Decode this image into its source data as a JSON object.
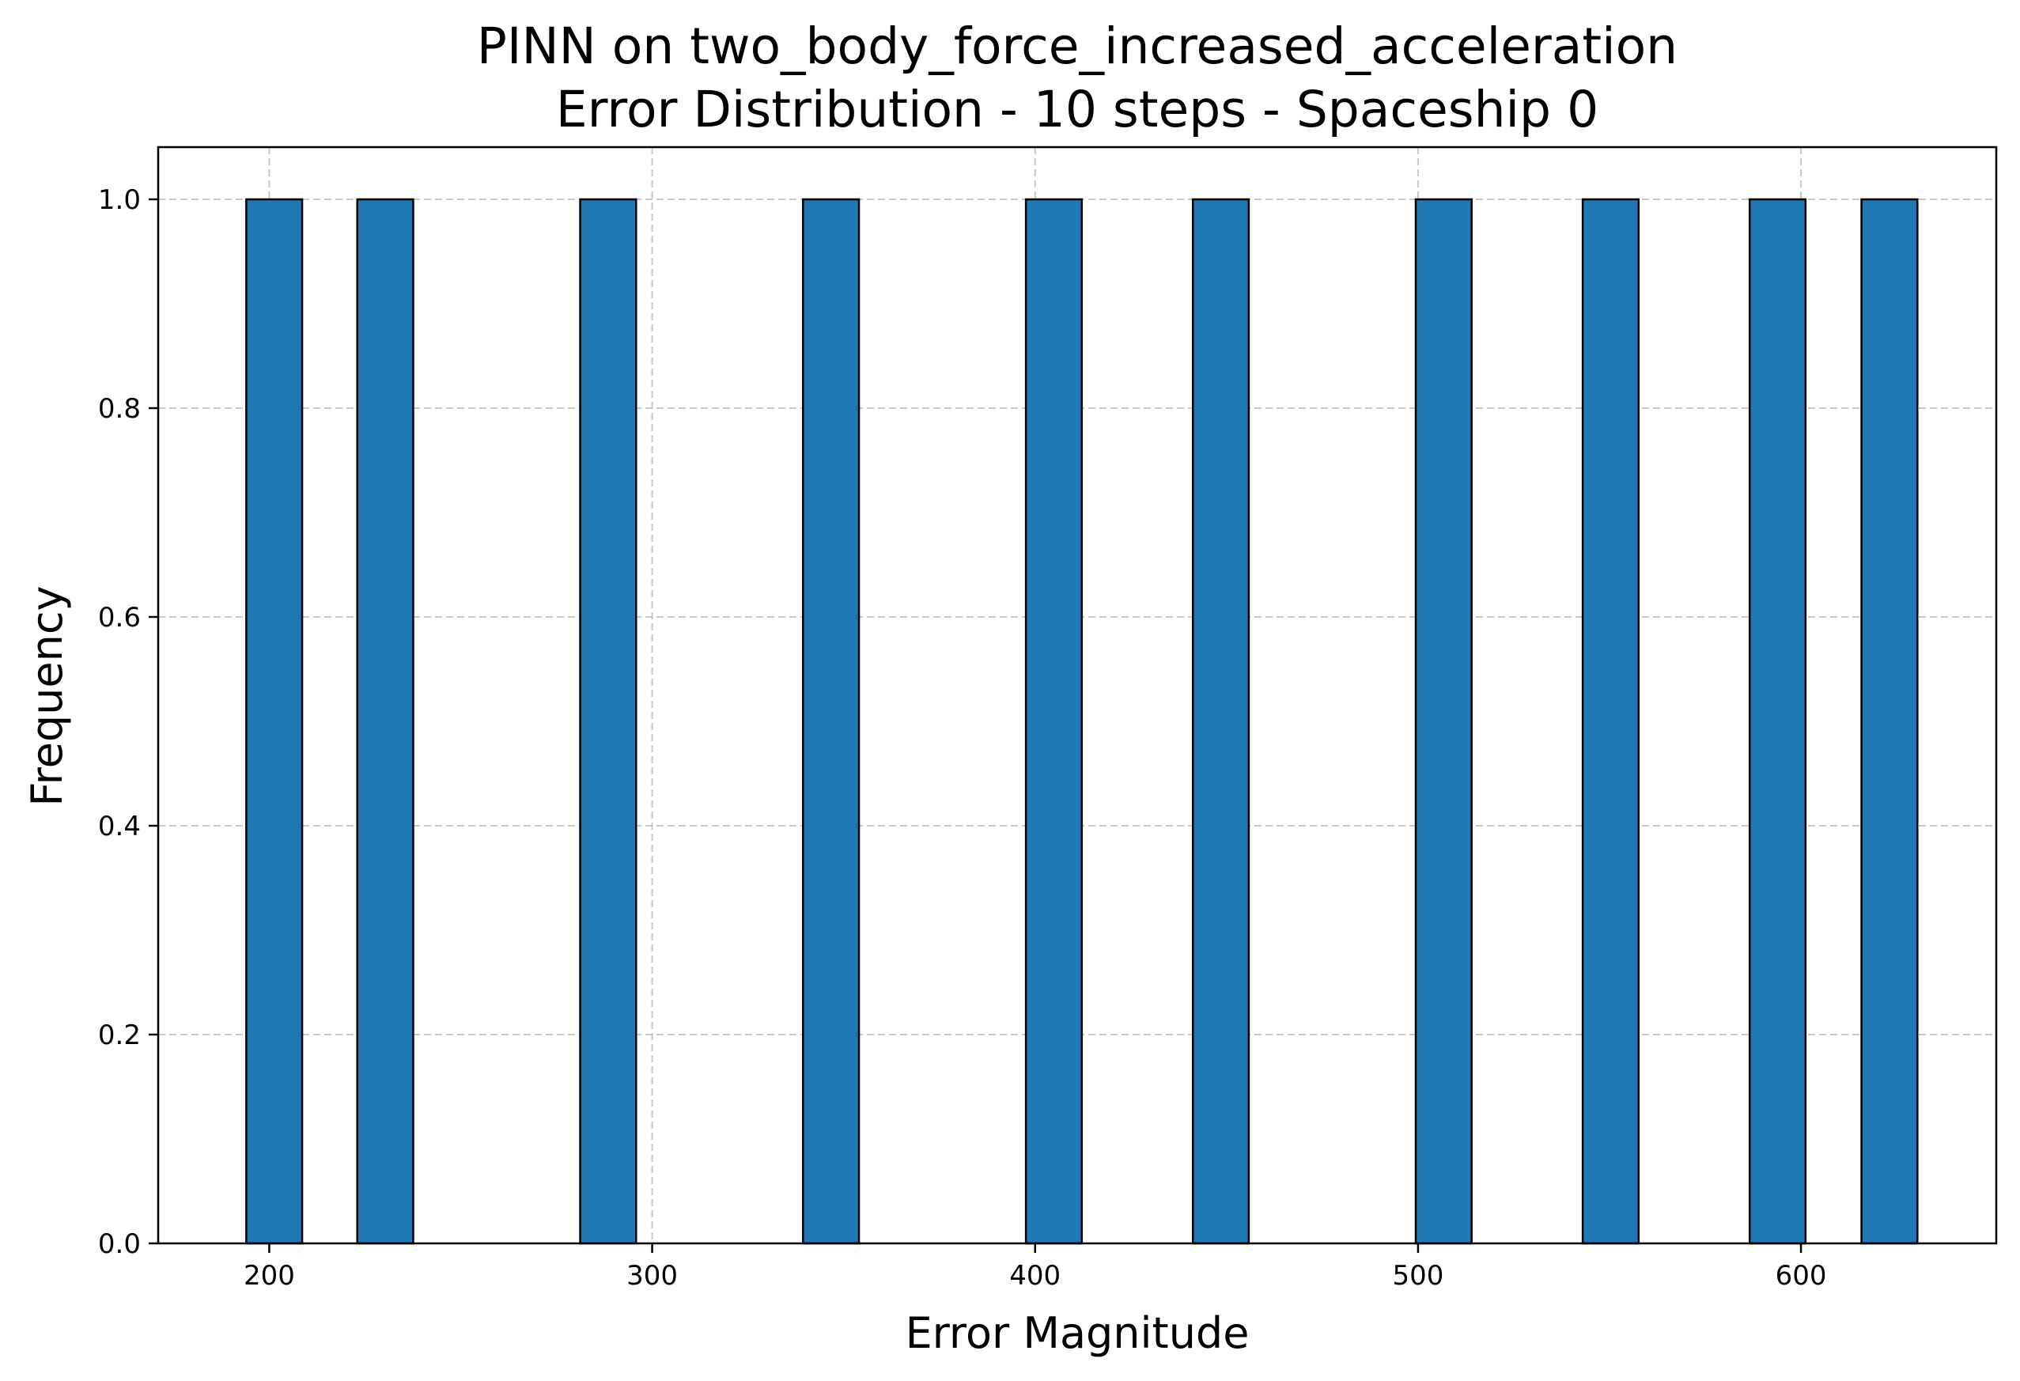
{
  "chart_data": {
    "type": "bar",
    "title": "PINN on two_body_force_increased_acceleration",
    "subtitle": "Error Distribution - 10 steps - Spaceship 0",
    "xlabel": "Error Magnitude",
    "ylabel": "Frequency",
    "xlim": [
      171,
      651
    ],
    "ylim": [
      0,
      1.05
    ],
    "xticks": [
      200,
      300,
      400,
      500,
      600
    ],
    "yticks": [
      0.0,
      0.2,
      0.4,
      0.6,
      0.8,
      1.0
    ],
    "xtick_labels": [
      "200",
      "300",
      "400",
      "500",
      "600"
    ],
    "ytick_labels": [
      "0.0",
      "0.2",
      "0.4",
      "0.6",
      "0.8",
      "1.0"
    ],
    "grid": true,
    "legend": "none",
    "bar_color": "#1f77b4",
    "bar_edge_color": "#000000",
    "bins": [
      {
        "x0": 194.0,
        "x1": 208.6,
        "count": 1
      },
      {
        "x0": 223.0,
        "x1": 237.6,
        "count": 1
      },
      {
        "x0": 281.2,
        "x1": 295.8,
        "count": 1
      },
      {
        "x0": 339.4,
        "x1": 354.0,
        "count": 1
      },
      {
        "x0": 397.6,
        "x1": 412.2,
        "count": 1
      },
      {
        "x0": 441.2,
        "x1": 455.8,
        "count": 1
      },
      {
        "x0": 499.4,
        "x1": 514.0,
        "count": 1
      },
      {
        "x0": 543.0,
        "x1": 557.6,
        "count": 1
      },
      {
        "x0": 586.6,
        "x1": 601.2,
        "count": 1
      },
      {
        "x0": 615.8,
        "x1": 630.4,
        "count": 1
      }
    ]
  }
}
